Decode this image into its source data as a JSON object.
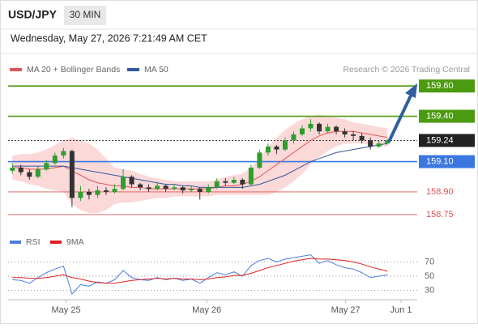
{
  "header": {
    "pair": "USD/JPY",
    "timeframe": "30 MIN",
    "datetime": "Wednesday, May 27, 2026 7:21:49 AM CET"
  },
  "chart_data": [
    {
      "type": "candlestick",
      "source": "Research © 2026 Trading Central",
      "up_color": "#2e9e2e",
      "down_color": "#333333",
      "xlim": [
        -0.5,
        47.5
      ],
      "ylim": [
        158.68,
        159.66
      ],
      "open": [
        159.04,
        159.06,
        159.03,
        159.0,
        159.05,
        159.09,
        159.14,
        159.17,
        158.86,
        158.9,
        158.88,
        158.91,
        158.9,
        158.92,
        159.0,
        158.95,
        158.93,
        158.92,
        158.94,
        158.92,
        158.93,
        158.91,
        158.92,
        158.9,
        158.93,
        158.97,
        158.96,
        158.98,
        158.95,
        159.06,
        159.16,
        159.2,
        159.18,
        159.24,
        159.28,
        159.32,
        159.35,
        159.3,
        159.33,
        159.3,
        159.28,
        159.27,
        159.24,
        159.2,
        159.22
      ],
      "high": [
        159.09,
        159.08,
        159.05,
        159.07,
        159.11,
        159.16,
        159.19,
        159.18,
        158.94,
        158.92,
        158.94,
        158.93,
        158.95,
        159.05,
        159.01,
        158.96,
        158.95,
        158.96,
        158.95,
        158.95,
        158.94,
        158.94,
        158.93,
        158.95,
        158.99,
        158.99,
        159.0,
        158.99,
        159.08,
        159.18,
        159.22,
        159.21,
        159.26,
        159.3,
        159.34,
        159.38,
        159.36,
        159.35,
        159.34,
        159.32,
        159.3,
        159.29,
        159.26,
        159.24,
        159.25
      ],
      "low": [
        159.02,
        159.01,
        158.98,
        158.99,
        159.04,
        159.08,
        159.12,
        158.8,
        158.84,
        158.85,
        158.86,
        158.88,
        158.89,
        158.91,
        158.93,
        158.91,
        158.9,
        158.91,
        158.9,
        158.91,
        158.89,
        158.9,
        158.85,
        158.89,
        158.92,
        158.94,
        158.95,
        158.92,
        158.94,
        159.05,
        159.14,
        159.15,
        159.17,
        159.22,
        159.27,
        159.3,
        159.28,
        159.29,
        159.28,
        159.26,
        159.24,
        159.22,
        159.18,
        159.19,
        159.21
      ],
      "close": [
        159.06,
        159.03,
        159.0,
        159.05,
        159.09,
        159.14,
        159.17,
        158.86,
        158.9,
        158.88,
        158.91,
        158.9,
        158.92,
        159.0,
        158.95,
        158.93,
        158.92,
        158.94,
        158.92,
        158.93,
        158.91,
        158.92,
        158.9,
        158.93,
        158.97,
        158.96,
        158.98,
        158.95,
        159.06,
        159.16,
        159.2,
        159.18,
        159.24,
        159.28,
        159.32,
        159.35,
        159.3,
        159.33,
        159.3,
        159.28,
        159.27,
        159.24,
        159.2,
        159.22,
        159.24
      ],
      "series": [
        {
          "name": "MA 20 + Bollinger Bands",
          "color": "#e05555",
          "band_color": "#fbd9d9",
          "values": [
            159.06,
            159.06,
            159.05,
            159.05,
            159.05,
            159.06,
            159.07,
            159.04,
            159.01,
            158.98,
            158.96,
            158.95,
            158.94,
            158.94,
            158.93,
            158.93,
            158.92,
            158.92,
            158.92,
            158.92,
            158.92,
            158.92,
            158.92,
            158.92,
            158.93,
            158.94,
            158.94,
            158.95,
            158.97,
            159.0,
            159.04,
            159.08,
            159.12,
            159.16,
            159.2,
            159.24,
            159.27,
            159.29,
            159.3,
            159.3,
            159.3,
            159.29,
            159.28,
            159.27,
            159.26
          ],
          "upper": [
            159.14,
            159.15,
            159.15,
            159.16,
            159.18,
            159.21,
            159.24,
            159.26,
            159.24,
            159.22,
            159.18,
            159.12,
            159.06,
            159.05,
            159.04,
            159.02,
            159.0,
            158.99,
            158.98,
            158.97,
            158.97,
            158.97,
            158.97,
            158.97,
            158.98,
            159.0,
            159.01,
            159.02,
            159.06,
            159.12,
            159.2,
            159.26,
            159.31,
            159.35,
            159.38,
            159.4,
            159.41,
            159.4,
            159.39,
            159.38,
            159.36,
            159.35,
            159.34,
            159.33,
            159.32
          ],
          "lower": [
            158.98,
            158.97,
            158.95,
            158.94,
            158.92,
            158.91,
            158.9,
            158.82,
            158.78,
            158.76,
            158.76,
            158.78,
            158.82,
            158.83,
            158.83,
            158.84,
            158.85,
            158.86,
            158.86,
            158.87,
            158.87,
            158.87,
            158.87,
            158.87,
            158.88,
            158.88,
            158.88,
            158.88,
            158.88,
            158.88,
            158.88,
            158.9,
            158.93,
            158.97,
            159.02,
            159.08,
            159.13,
            159.17,
            159.2,
            159.22,
            159.22,
            159.22,
            159.21,
            159.2,
            159.2
          ]
        },
        {
          "name": "MA 50",
          "color": "#34589a",
          "values": [
            159.07,
            159.07,
            159.07,
            159.07,
            159.07,
            159.07,
            159.07,
            159.06,
            159.05,
            159.04,
            159.03,
            159.02,
            159.01,
            159.0,
            158.99,
            158.98,
            158.97,
            158.96,
            158.95,
            158.95,
            158.94,
            158.94,
            158.93,
            158.93,
            158.93,
            158.93,
            158.93,
            158.93,
            158.94,
            158.95,
            158.97,
            158.99,
            159.01,
            159.04,
            159.07,
            159.1,
            159.12,
            159.14,
            159.16,
            159.17,
            159.18,
            159.19,
            159.2,
            159.21,
            159.22
          ]
        }
      ],
      "levels": [
        {
          "value": 159.6,
          "label": "159.60",
          "color": "#4c9a10",
          "style": "box"
        },
        {
          "value": 159.4,
          "label": "159.40",
          "color": "#4c9a10",
          "style": "box"
        },
        {
          "value": 159.24,
          "label": "159.24",
          "color": "#222222",
          "style": "current"
        },
        {
          "value": 159.1,
          "label": "159.10",
          "color": "#3a78e0",
          "style": "box"
        },
        {
          "value": 158.9,
          "label": "158.90",
          "color": "#e05555",
          "style": "text"
        },
        {
          "value": 158.75,
          "label": "158.75",
          "color": "#e05555",
          "style": "text"
        }
      ]
    },
    {
      "type": "line",
      "xlim": [
        -0.5,
        47.5
      ],
      "ylim": [
        17,
        83
      ],
      "yticks": [
        70,
        50,
        30
      ],
      "xticks": [
        {
          "value": 6.3,
          "label": "May 25"
        },
        {
          "value": 22.8,
          "label": "May 26"
        },
        {
          "value": 39.1,
          "label": "May 27"
        },
        {
          "value": 45.6,
          "label": "Jun 1"
        }
      ],
      "series": [
        {
          "name": "RSI",
          "color": "#4a7fe0",
          "values": [
            45,
            44,
            40,
            48,
            55,
            60,
            64,
            25,
            38,
            36,
            42,
            40,
            45,
            58,
            48,
            45,
            44,
            48,
            45,
            47,
            44,
            46,
            40,
            48,
            55,
            52,
            56,
            50,
            65,
            72,
            75,
            70,
            74,
            76,
            78,
            80,
            68,
            72,
            66,
            62,
            60,
            55,
            48,
            50,
            52
          ]
        },
        {
          "name": "9MA",
          "color": "#e02020",
          "values": [
            48,
            48,
            47,
            47,
            48,
            50,
            52,
            48,
            46,
            43,
            41,
            40,
            40,
            42,
            44,
            45,
            46,
            47,
            46,
            47,
            46,
            46,
            45,
            46,
            48,
            49,
            51,
            51,
            54,
            58,
            62,
            65,
            68,
            71,
            73,
            75,
            74,
            74,
            73,
            72,
            70,
            67,
            63,
            60,
            57
          ]
        }
      ]
    }
  ]
}
